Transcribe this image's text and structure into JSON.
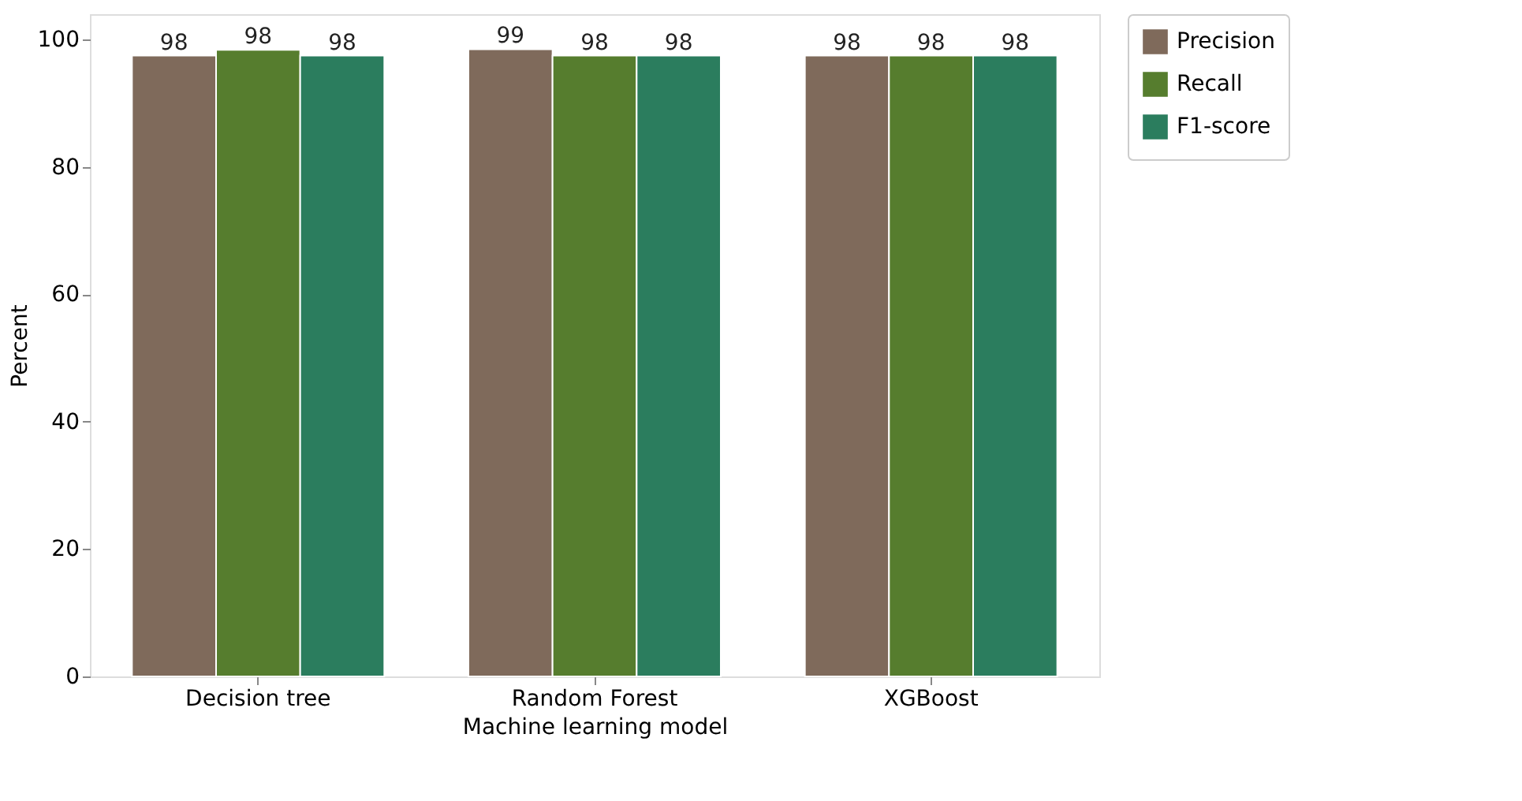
{
  "chart_data": {
    "type": "bar",
    "xlabel": "Machine learning model",
    "ylabel": "Percent",
    "categories": [
      "Decision tree",
      "Random Forest",
      "XGBoost"
    ],
    "series": [
      {
        "name": "Precision",
        "color": "#7f6a5b",
        "values": [
          97.5,
          98.5,
          97.5
        ],
        "value_labels": [
          "98",
          "99",
          "98"
        ]
      },
      {
        "name": "Recall",
        "color": "#567d2e",
        "values": [
          98.4,
          97.5,
          97.5
        ],
        "value_labels": [
          "98",
          "98",
          "98"
        ]
      },
      {
        "name": "F1-score",
        "color": "#2b7d5e",
        "values": [
          97.5,
          97.5,
          97.5
        ],
        "value_labels": [
          "98",
          "98",
          "98"
        ]
      }
    ],
    "ylim": [
      0,
      104
    ],
    "yticks": [
      0,
      20,
      40,
      60,
      80,
      100
    ],
    "grid": false,
    "legend": "top right"
  }
}
